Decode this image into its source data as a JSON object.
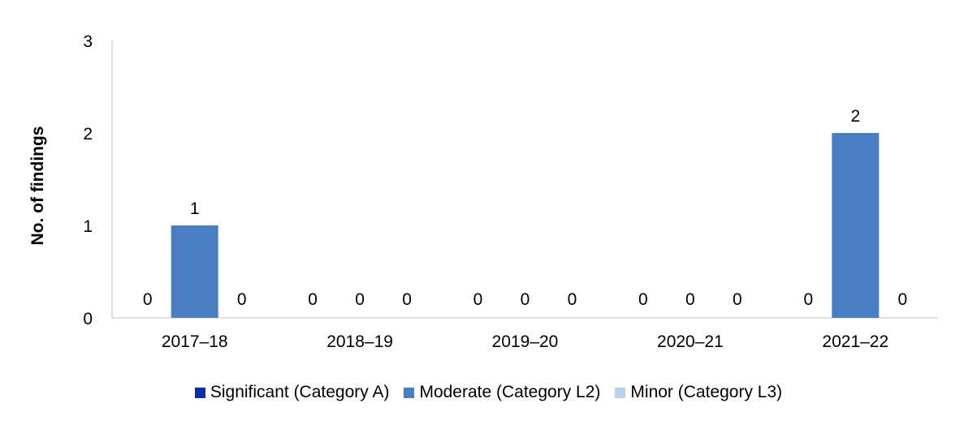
{
  "chart_data": {
    "type": "bar",
    "title": "",
    "xlabel": "",
    "ylabel": "No. of findings",
    "ylim": [
      0,
      3
    ],
    "yticks": [
      0,
      1,
      2,
      3
    ],
    "categories": [
      "2017–18",
      "2018–19",
      "2019–20",
      "2020–21",
      "2021–22"
    ],
    "series": [
      {
        "name": "Significant (Category A)",
        "color": "#0A2DA6",
        "values": [
          0,
          0,
          0,
          0,
          0
        ]
      },
      {
        "name": "Moderate (Category L2)",
        "color": "#4A7EC3",
        "values": [
          1,
          0,
          0,
          0,
          2
        ]
      },
      {
        "name": "Minor (Category L3)",
        "color": "#B4D4EC",
        "values": [
          0,
          0,
          0,
          0,
          0
        ]
      }
    ],
    "data_labels": true,
    "legend_position": "bottom",
    "grid": false
  }
}
